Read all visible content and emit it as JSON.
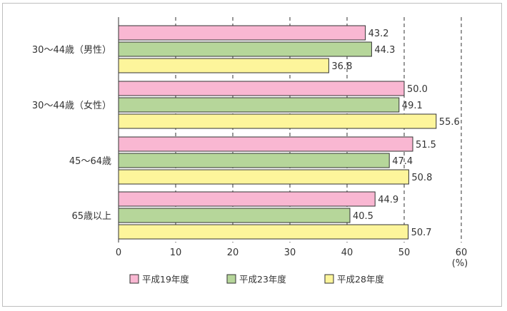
{
  "chart_data": {
    "type": "bar",
    "orientation": "horizontal",
    "categories": [
      "30～44歳（男性）",
      "30～44歳（女性）",
      "45～64歳",
      "65歳以上"
    ],
    "series": [
      {
        "name": "平成19年度",
        "values": [
          43.2,
          50.0,
          51.5,
          44.9
        ],
        "color": "#f9b7d2"
      },
      {
        "name": "平成23年度",
        "values": [
          44.3,
          49.1,
          47.4,
          40.5
        ],
        "color": "#b6d69a"
      },
      {
        "name": "平成28年度",
        "values": [
          36.8,
          55.6,
          50.8,
          50.7
        ],
        "color": "#fdf59b"
      }
    ],
    "xlim": [
      0,
      60
    ],
    "xticks": [
      "0",
      "10",
      "20",
      "30",
      "40",
      "50",
      "60"
    ],
    "xunit": "(%)",
    "grid": "vertical dashed",
    "legend_position": "bottom"
  }
}
